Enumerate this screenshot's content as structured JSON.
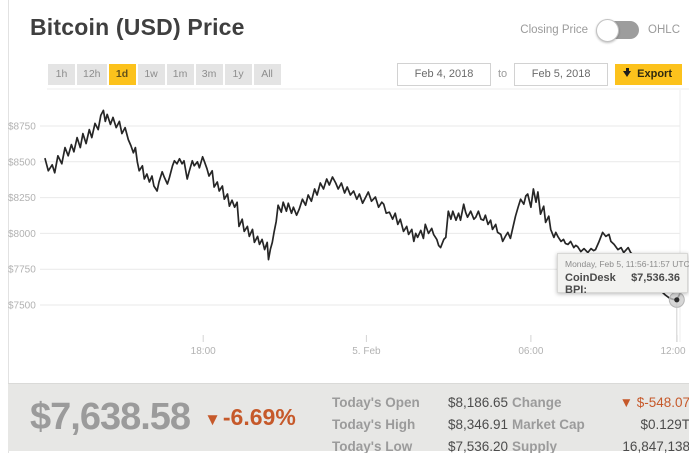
{
  "header": {
    "title": "Bitcoin (USD) Price",
    "toggle": {
      "left_label": "Closing Price",
      "right_label": "OHLC",
      "state": "closing-price"
    }
  },
  "controls": {
    "ranges": [
      {
        "label": "1h",
        "active": false
      },
      {
        "label": "12h",
        "active": false
      },
      {
        "label": "1d",
        "active": true
      },
      {
        "label": "1w",
        "active": false
      },
      {
        "label": "1m",
        "active": false
      },
      {
        "label": "3m",
        "active": false
      },
      {
        "label": "1y",
        "active": false
      },
      {
        "label": "All",
        "active": false
      }
    ],
    "date_from": "Feb 4, 2018",
    "to_label": "to",
    "date_to": "Feb 5, 2018",
    "export_label": "Export"
  },
  "tooltip": {
    "time": "Monday, Feb 5, 11:56-11:57 UTC",
    "label": "CoinDesk BPI:",
    "value": "$7,536.36"
  },
  "chart_data": {
    "type": "line",
    "title": "Bitcoin (USD) Price",
    "series_name": "CoinDesk BPI (USD)",
    "x_window": "Feb 4, 2018 12:00 UTC to Feb 5, 2018 12:00 UTC",
    "x_unit": "permille of 24h window",
    "grid": "horizontal gridlines only",
    "legend": "none",
    "line_color": "#262626",
    "ylim": [
      7270,
      9010
    ],
    "y_ticks": [
      {
        "value": 7500,
        "label": "$7500"
      },
      {
        "value": 7750,
        "label": "$7750"
      },
      {
        "value": 8000,
        "label": "$8000"
      },
      {
        "value": 8250,
        "label": "$8250"
      },
      {
        "value": 8500,
        "label": "$8500"
      },
      {
        "value": 8750,
        "label": "$8750"
      }
    ],
    "x_ticks": [
      {
        "permille": 255,
        "label": "18:00"
      },
      {
        "permille": 510,
        "label": "5. Feb"
      },
      {
        "permille": 767,
        "label": "06:00"
      },
      {
        "permille": 997,
        "label": "12:00"
      }
    ],
    "cursor": {
      "permille": 995,
      "price": 7536.36
    },
    "series": [
      {
        "name": "CoinDesk BPI (USD)",
        "points": [
          [
            8,
            8521
          ],
          [
            13,
            8437
          ],
          [
            19,
            8479
          ],
          [
            23,
            8423
          ],
          [
            28,
            8542
          ],
          [
            34,
            8486
          ],
          [
            39,
            8599
          ],
          [
            44,
            8542
          ],
          [
            49,
            8620
          ],
          [
            53,
            8570
          ],
          [
            58,
            8669
          ],
          [
            63,
            8599
          ],
          [
            67,
            8697
          ],
          [
            72,
            8627
          ],
          [
            77,
            8725
          ],
          [
            81,
            8669
          ],
          [
            86,
            8768
          ],
          [
            91,
            8725
          ],
          [
            95,
            8824
          ],
          [
            99,
            8859
          ],
          [
            102,
            8782
          ],
          [
            105,
            8831
          ],
          [
            110,
            8761
          ],
          [
            114,
            8810
          ],
          [
            119,
            8739
          ],
          [
            124,
            8782
          ],
          [
            128,
            8697
          ],
          [
            133,
            8739
          ],
          [
            138,
            8655
          ],
          [
            142,
            8613
          ],
          [
            146,
            8563
          ],
          [
            149,
            8599
          ],
          [
            152,
            8500
          ],
          [
            155,
            8437
          ],
          [
            160,
            8472
          ],
          [
            163,
            8380
          ],
          [
            167,
            8415
          ],
          [
            171,
            8359
          ],
          [
            175,
            8401
          ],
          [
            178,
            8331
          ],
          [
            183,
            8296
          ],
          [
            186,
            8359
          ],
          [
            191,
            8430
          ],
          [
            194,
            8394
          ],
          [
            199,
            8345
          ],
          [
            202,
            8387
          ],
          [
            207,
            8472
          ],
          [
            210,
            8507
          ],
          [
            214,
            8486
          ],
          [
            218,
            8521
          ],
          [
            222,
            8486
          ],
          [
            225,
            8507
          ],
          [
            230,
            8380
          ],
          [
            233,
            8430
          ],
          [
            238,
            8507
          ],
          [
            241,
            8472
          ],
          [
            246,
            8500
          ],
          [
            249,
            8458
          ],
          [
            254,
            8535
          ],
          [
            257,
            8500
          ],
          [
            261,
            8451
          ],
          [
            264,
            8401
          ],
          [
            269,
            8437
          ],
          [
            272,
            8324
          ],
          [
            277,
            8359
          ],
          [
            280,
            8296
          ],
          [
            285,
            8331
          ],
          [
            288,
            8239
          ],
          [
            293,
            8275
          ],
          [
            296,
            8190
          ],
          [
            300,
            8232
          ],
          [
            304,
            8183
          ],
          [
            308,
            8218
          ],
          [
            311,
            8049
          ],
          [
            316,
            8099
          ],
          [
            319,
            8014
          ],
          [
            324,
            8049
          ],
          [
            327,
            7979
          ],
          [
            332,
            8028
          ],
          [
            335,
            7937
          ],
          [
            340,
            7979
          ],
          [
            343,
            7923
          ],
          [
            347,
            7958
          ],
          [
            351,
            7887
          ],
          [
            355,
            7937
          ],
          [
            357,
            7817
          ],
          [
            360,
            7890
          ],
          [
            363,
            7937
          ],
          [
            366,
            8014
          ],
          [
            369,
            8084
          ],
          [
            372,
            8197
          ],
          [
            377,
            8148
          ],
          [
            380,
            8218
          ],
          [
            385,
            8155
          ],
          [
            388,
            8211
          ],
          [
            393,
            8141
          ],
          [
            396,
            8183
          ],
          [
            401,
            8127
          ],
          [
            405,
            8169
          ],
          [
            410,
            8239
          ],
          [
            415,
            8197
          ],
          [
            419,
            8268
          ],
          [
            424,
            8225
          ],
          [
            429,
            8310
          ],
          [
            433,
            8268
          ],
          [
            438,
            8352
          ],
          [
            443,
            8310
          ],
          [
            448,
            8380
          ],
          [
            452,
            8338
          ],
          [
            457,
            8394
          ],
          [
            462,
            8352
          ],
          [
            466,
            8310
          ],
          [
            471,
            8352
          ],
          [
            476,
            8282
          ],
          [
            480,
            8324
          ],
          [
            485,
            8268
          ],
          [
            490,
            8296
          ],
          [
            495,
            8239
          ],
          [
            499,
            8275
          ],
          [
            504,
            8211
          ],
          [
            509,
            8254
          ],
          [
            513,
            8289
          ],
          [
            518,
            8225
          ],
          [
            524,
            8254
          ],
          [
            529,
            8183
          ],
          [
            534,
            8218
          ],
          [
            537,
            8204
          ],
          [
            541,
            8141
          ],
          [
            546,
            8148
          ],
          [
            551,
            8099
          ],
          [
            555,
            8141
          ],
          [
            559,
            8063
          ],
          [
            563,
            8099
          ],
          [
            568,
            8014
          ],
          [
            573,
            8049
          ],
          [
            576,
            7993
          ],
          [
            581,
            8028
          ],
          [
            584,
            7944
          ],
          [
            587,
            8000
          ],
          [
            590,
            7972
          ],
          [
            595,
            8021
          ],
          [
            599,
            7965
          ],
          [
            602,
            8063
          ],
          [
            607,
            8000
          ],
          [
            612,
            8035
          ],
          [
            615,
            7993
          ],
          [
            620,
            7958
          ],
          [
            623,
            7915
          ],
          [
            626,
            7901
          ],
          [
            631,
            7958
          ],
          [
            634,
            7972
          ],
          [
            638,
            8155
          ],
          [
            642,
            8099
          ],
          [
            645,
            8155
          ],
          [
            650,
            8092
          ],
          [
            654,
            8141
          ],
          [
            657,
            8092
          ],
          [
            662,
            8204
          ],
          [
            665,
            8148
          ],
          [
            668,
            8113
          ],
          [
            673,
            8155
          ],
          [
            678,
            8099
          ],
          [
            681,
            8113
          ],
          [
            685,
            8155
          ],
          [
            689,
            8099
          ],
          [
            693,
            8092
          ],
          [
            696,
            8127
          ],
          [
            700,
            8063
          ],
          [
            704,
            8092
          ],
          [
            707,
            8028
          ],
          [
            712,
            8063
          ],
          [
            715,
            8007
          ],
          [
            720,
            7993
          ],
          [
            723,
            7944
          ],
          [
            728,
            7986
          ],
          [
            731,
            8007
          ],
          [
            735,
            7965
          ],
          [
            740,
            8063
          ],
          [
            743,
            8120
          ],
          [
            747,
            8183
          ],
          [
            751,
            8239
          ],
          [
            756,
            8204
          ],
          [
            759,
            8261
          ],
          [
            762,
            8275
          ],
          [
            767,
            8183
          ],
          [
            771,
            8310
          ],
          [
            775,
            8218
          ],
          [
            778,
            8289
          ],
          [
            782,
            8134
          ],
          [
            787,
            8190
          ],
          [
            790,
            8077
          ],
          [
            795,
            8120
          ],
          [
            798,
            8028
          ],
          [
            803,
            7972
          ],
          [
            806,
            8007
          ],
          [
            809,
            7979
          ],
          [
            814,
            7944
          ],
          [
            818,
            7958
          ],
          [
            821,
            7930
          ],
          [
            825,
            7923
          ],
          [
            829,
            7944
          ],
          [
            834,
            7901
          ],
          [
            837,
            7916
          ],
          [
            840,
            7908
          ],
          [
            845,
            7873
          ],
          [
            850,
            7894
          ],
          [
            856,
            7866
          ],
          [
            861,
            7894
          ],
          [
            865,
            7880
          ],
          [
            868,
            7887
          ],
          [
            873,
            7937
          ],
          [
            879,
            8007
          ],
          [
            884,
            7979
          ],
          [
            889,
            7993
          ],
          [
            892,
            7944
          ],
          [
            897,
            7923
          ],
          [
            903,
            7887
          ],
          [
            908,
            7901
          ],
          [
            912,
            7866
          ],
          [
            919,
            7901
          ],
          [
            923,
            7866
          ],
          [
            928,
            7845
          ],
          [
            933,
            7810
          ],
          [
            939,
            7775
          ],
          [
            945,
            7740
          ],
          [
            951,
            7705
          ],
          [
            958,
            7670
          ],
          [
            964,
            7635
          ],
          [
            970,
            7600
          ],
          [
            977,
            7570
          ],
          [
            983,
            7550
          ],
          [
            989,
            7540
          ],
          [
            995,
            7536
          ],
          [
            1000,
            7580
          ]
        ]
      }
    ]
  },
  "summary": {
    "price": "$7,638.58",
    "change_arrow": "▼",
    "change_pct": "-6.69%",
    "groups": [
      {
        "rows": [
          {
            "label": "Today's Open",
            "value": "$8,186.65",
            "accent": false
          },
          {
            "label": "Today's High",
            "value": "$8,346.91",
            "accent": false
          },
          {
            "label": "Today's Low",
            "value": "$7,536.20",
            "accent": false
          }
        ]
      },
      {
        "rows": [
          {
            "label": "Change",
            "value": "▼ $-548.07",
            "accent": true
          },
          {
            "label": "Market Cap",
            "value": "$0.129T",
            "accent": false
          },
          {
            "label": "Supply",
            "value": "16,847,138",
            "accent": false
          }
        ]
      }
    ]
  }
}
